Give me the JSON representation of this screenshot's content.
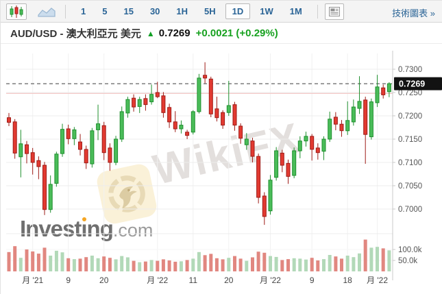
{
  "toolbar": {
    "chart_types": [
      {
        "id": "candlestick",
        "selected": true
      },
      {
        "id": "line",
        "selected": false
      }
    ],
    "timeframes": [
      "1",
      "5",
      "15",
      "30",
      "1H",
      "5H",
      "1D",
      "1W",
      "1M"
    ],
    "selected_timeframe": "1D",
    "tech_link_label": "技術圖表 »"
  },
  "header": {
    "title": "AUD/USD - 澳大利亞元 美元",
    "arrow": "▲",
    "price": "0.7269",
    "change": "+0.0021 (+0.29%)"
  },
  "watermark": {
    "text": "WikiFX"
  },
  "logo": {
    "part1": "Invest",
    "part2": "ı",
    "part3": "ng",
    "suffix": ".com"
  },
  "chart_data": {
    "type": "candlestick",
    "pair": "AUD/USD",
    "interval": "1D",
    "last_price": 0.7269,
    "last_price_label": "0.7269",
    "prev_close_line": 0.7248,
    "ylim": [
      0.6945,
      0.7345
    ],
    "y_ticks": [
      {
        "label": "0.7300",
        "value": 0.73
      },
      {
        "label": "0.7250",
        "value": 0.725
      },
      {
        "label": "0.7200",
        "value": 0.72
      },
      {
        "label": "0.7150",
        "value": 0.715
      },
      {
        "label": "0.7100",
        "value": 0.71
      },
      {
        "label": "0.7050",
        "value": 0.705
      },
      {
        "label": "0.7000",
        "value": 0.7
      }
    ],
    "volume_ticks": [
      {
        "label": "100.0k",
        "value": 100
      },
      {
        "label": "50.0k",
        "value": 50
      }
    ],
    "x_labels": [
      {
        "label": "月 '21",
        "index": 4
      },
      {
        "label": "9",
        "index": 10
      },
      {
        "label": "20",
        "index": 16
      },
      {
        "label": "月 '22",
        "index": 25
      },
      {
        "label": "11",
        "index": 31
      },
      {
        "label": "20",
        "index": 37
      },
      {
        "label": "月 '22",
        "index": 44
      },
      {
        "label": "9",
        "index": 51
      },
      {
        "label": "18",
        "index": 57
      },
      {
        "label": "月 '22",
        "index": 62
      }
    ],
    "candles": [
      [
        0.7196,
        0.7206,
        0.7178,
        0.7186
      ],
      [
        0.7187,
        0.7193,
        0.7108,
        0.712
      ],
      [
        0.7112,
        0.717,
        0.7068,
        0.714
      ],
      [
        0.7138,
        0.7146,
        0.7098,
        0.7119
      ],
      [
        0.7121,
        0.7131,
        0.7074,
        0.71
      ],
      [
        0.7104,
        0.7113,
        0.7064,
        0.7091
      ],
      [
        0.7094,
        0.7101,
        0.6987,
        0.6999
      ],
      [
        0.6999,
        0.7072,
        0.6992,
        0.7053
      ],
      [
        0.7055,
        0.7123,
        0.7048,
        0.7118
      ],
      [
        0.7119,
        0.7183,
        0.7112,
        0.7171
      ],
      [
        0.7172,
        0.7181,
        0.7139,
        0.7151
      ],
      [
        0.7151,
        0.7176,
        0.7137,
        0.717
      ],
      [
        0.7144,
        0.7161,
        0.7115,
        0.7128
      ],
      [
        0.7128,
        0.7136,
        0.7086,
        0.7099
      ],
      [
        0.7097,
        0.7174,
        0.7089,
        0.7168
      ],
      [
        0.717,
        0.7224,
        0.7148,
        0.7183
      ],
      [
        0.7179,
        0.7187,
        0.7105,
        0.7121
      ],
      [
        0.7131,
        0.7141,
        0.7082,
        0.71
      ],
      [
        0.71,
        0.7157,
        0.7094,
        0.715
      ],
      [
        0.715,
        0.722,
        0.7144,
        0.7209
      ],
      [
        0.7206,
        0.7241,
        0.7196,
        0.7235
      ],
      [
        0.7238,
        0.7246,
        0.7209,
        0.7219
      ],
      [
        0.722,
        0.7241,
        0.7206,
        0.7235
      ],
      [
        0.7237,
        0.7246,
        0.7211,
        0.7224
      ],
      [
        0.723,
        0.7267,
        0.7224,
        0.7246
      ],
      [
        0.725,
        0.7273,
        0.7238,
        0.7241
      ],
      [
        0.7243,
        0.7251,
        0.7196,
        0.7207
      ],
      [
        0.7218,
        0.7226,
        0.7174,
        0.7187
      ],
      [
        0.7187,
        0.721,
        0.7165,
        0.7172
      ],
      [
        0.7172,
        0.719,
        0.7162,
        0.718
      ],
      [
        0.7165,
        0.717,
        0.715,
        0.7158
      ],
      [
        0.7165,
        0.7212,
        0.716,
        0.7209
      ],
      [
        0.7209,
        0.729,
        0.7205,
        0.7281
      ],
      [
        0.7287,
        0.7315,
        0.727,
        0.7281
      ],
      [
        0.7279,
        0.7284,
        0.7197,
        0.7204
      ],
      [
        0.7215,
        0.7241,
        0.7188,
        0.7196
      ],
      [
        0.7207,
        0.7212,
        0.7172,
        0.718
      ],
      [
        0.7207,
        0.7275,
        0.72,
        0.7222
      ],
      [
        0.7224,
        0.723,
        0.7168,
        0.718
      ],
      [
        0.7178,
        0.7184,
        0.714,
        0.7152
      ],
      [
        0.7138,
        0.7163,
        0.7127,
        0.715
      ],
      [
        0.7146,
        0.7153,
        0.71,
        0.7113
      ],
      [
        0.7113,
        0.7119,
        0.7012,
        0.7025
      ],
      [
        0.7028,
        0.7036,
        0.6966,
        0.6984
      ],
      [
        0.6996,
        0.7073,
        0.6988,
        0.7062
      ],
      [
        0.7068,
        0.7133,
        0.7061,
        0.7125
      ],
      [
        0.712,
        0.7127,
        0.7079,
        0.7094
      ],
      [
        0.7098,
        0.7106,
        0.7054,
        0.707
      ],
      [
        0.7072,
        0.7132,
        0.7066,
        0.7125
      ],
      [
        0.7125,
        0.7156,
        0.7109,
        0.7146
      ],
      [
        0.7146,
        0.7166,
        0.7134,
        0.7156
      ],
      [
        0.7156,
        0.7161,
        0.7104,
        0.7128
      ],
      [
        0.7131,
        0.7141,
        0.7106,
        0.7121
      ],
      [
        0.7124,
        0.7156,
        0.7105,
        0.715
      ],
      [
        0.715,
        0.7209,
        0.7144,
        0.7193
      ],
      [
        0.7197,
        0.7208,
        0.7169,
        0.7182
      ],
      [
        0.7182,
        0.7191,
        0.7155,
        0.7168
      ],
      [
        0.7168,
        0.7231,
        0.7159,
        0.719
      ],
      [
        0.7187,
        0.7235,
        0.7179,
        0.7219
      ],
      [
        0.7216,
        0.7285,
        0.7204,
        0.7231
      ],
      [
        0.7234,
        0.7241,
        0.7097,
        0.716
      ],
      [
        0.7155,
        0.7237,
        0.7149,
        0.723
      ],
      [
        0.7228,
        0.7288,
        0.7219,
        0.7262
      ],
      [
        0.726,
        0.7267,
        0.7237,
        0.7245
      ],
      [
        0.7252,
        0.7272,
        0.724,
        0.7269
      ]
    ],
    "volumes_k": [
      88,
      115,
      62,
      100,
      91,
      81,
      108,
      72,
      94,
      87,
      60,
      56,
      58,
      65,
      72,
      60,
      68,
      62,
      55,
      70,
      64,
      48,
      42,
      45,
      52,
      48,
      55,
      50,
      44,
      46,
      52,
      58,
      88,
      74,
      80,
      60,
      55,
      62,
      70,
      58,
      48,
      64,
      90,
      85,
      70,
      66,
      52,
      56,
      60,
      58,
      54,
      62,
      50,
      56,
      75,
      68,
      58,
      72,
      65,
      82,
      145,
      108,
      112,
      105,
      96
    ],
    "colors": {
      "up_fill": "#4abc59",
      "up_stroke": "#1e8f2d",
      "down_fill": "#e23a31",
      "down_stroke": "#9e1b16",
      "up_vol": "#b2d9b8",
      "down_vol": "#e18780",
      "grid": "#ececec",
      "vgrid": "#f1f1f1",
      "axis_line": "#c9c9c9",
      "axis_text": "#555555",
      "xaxis_text": "#444444",
      "dashed_line": "#3b3b3b",
      "prev_close": "#f4c9c7",
      "tag_bg": "#121212",
      "tag_text": "#ffffff"
    }
  }
}
